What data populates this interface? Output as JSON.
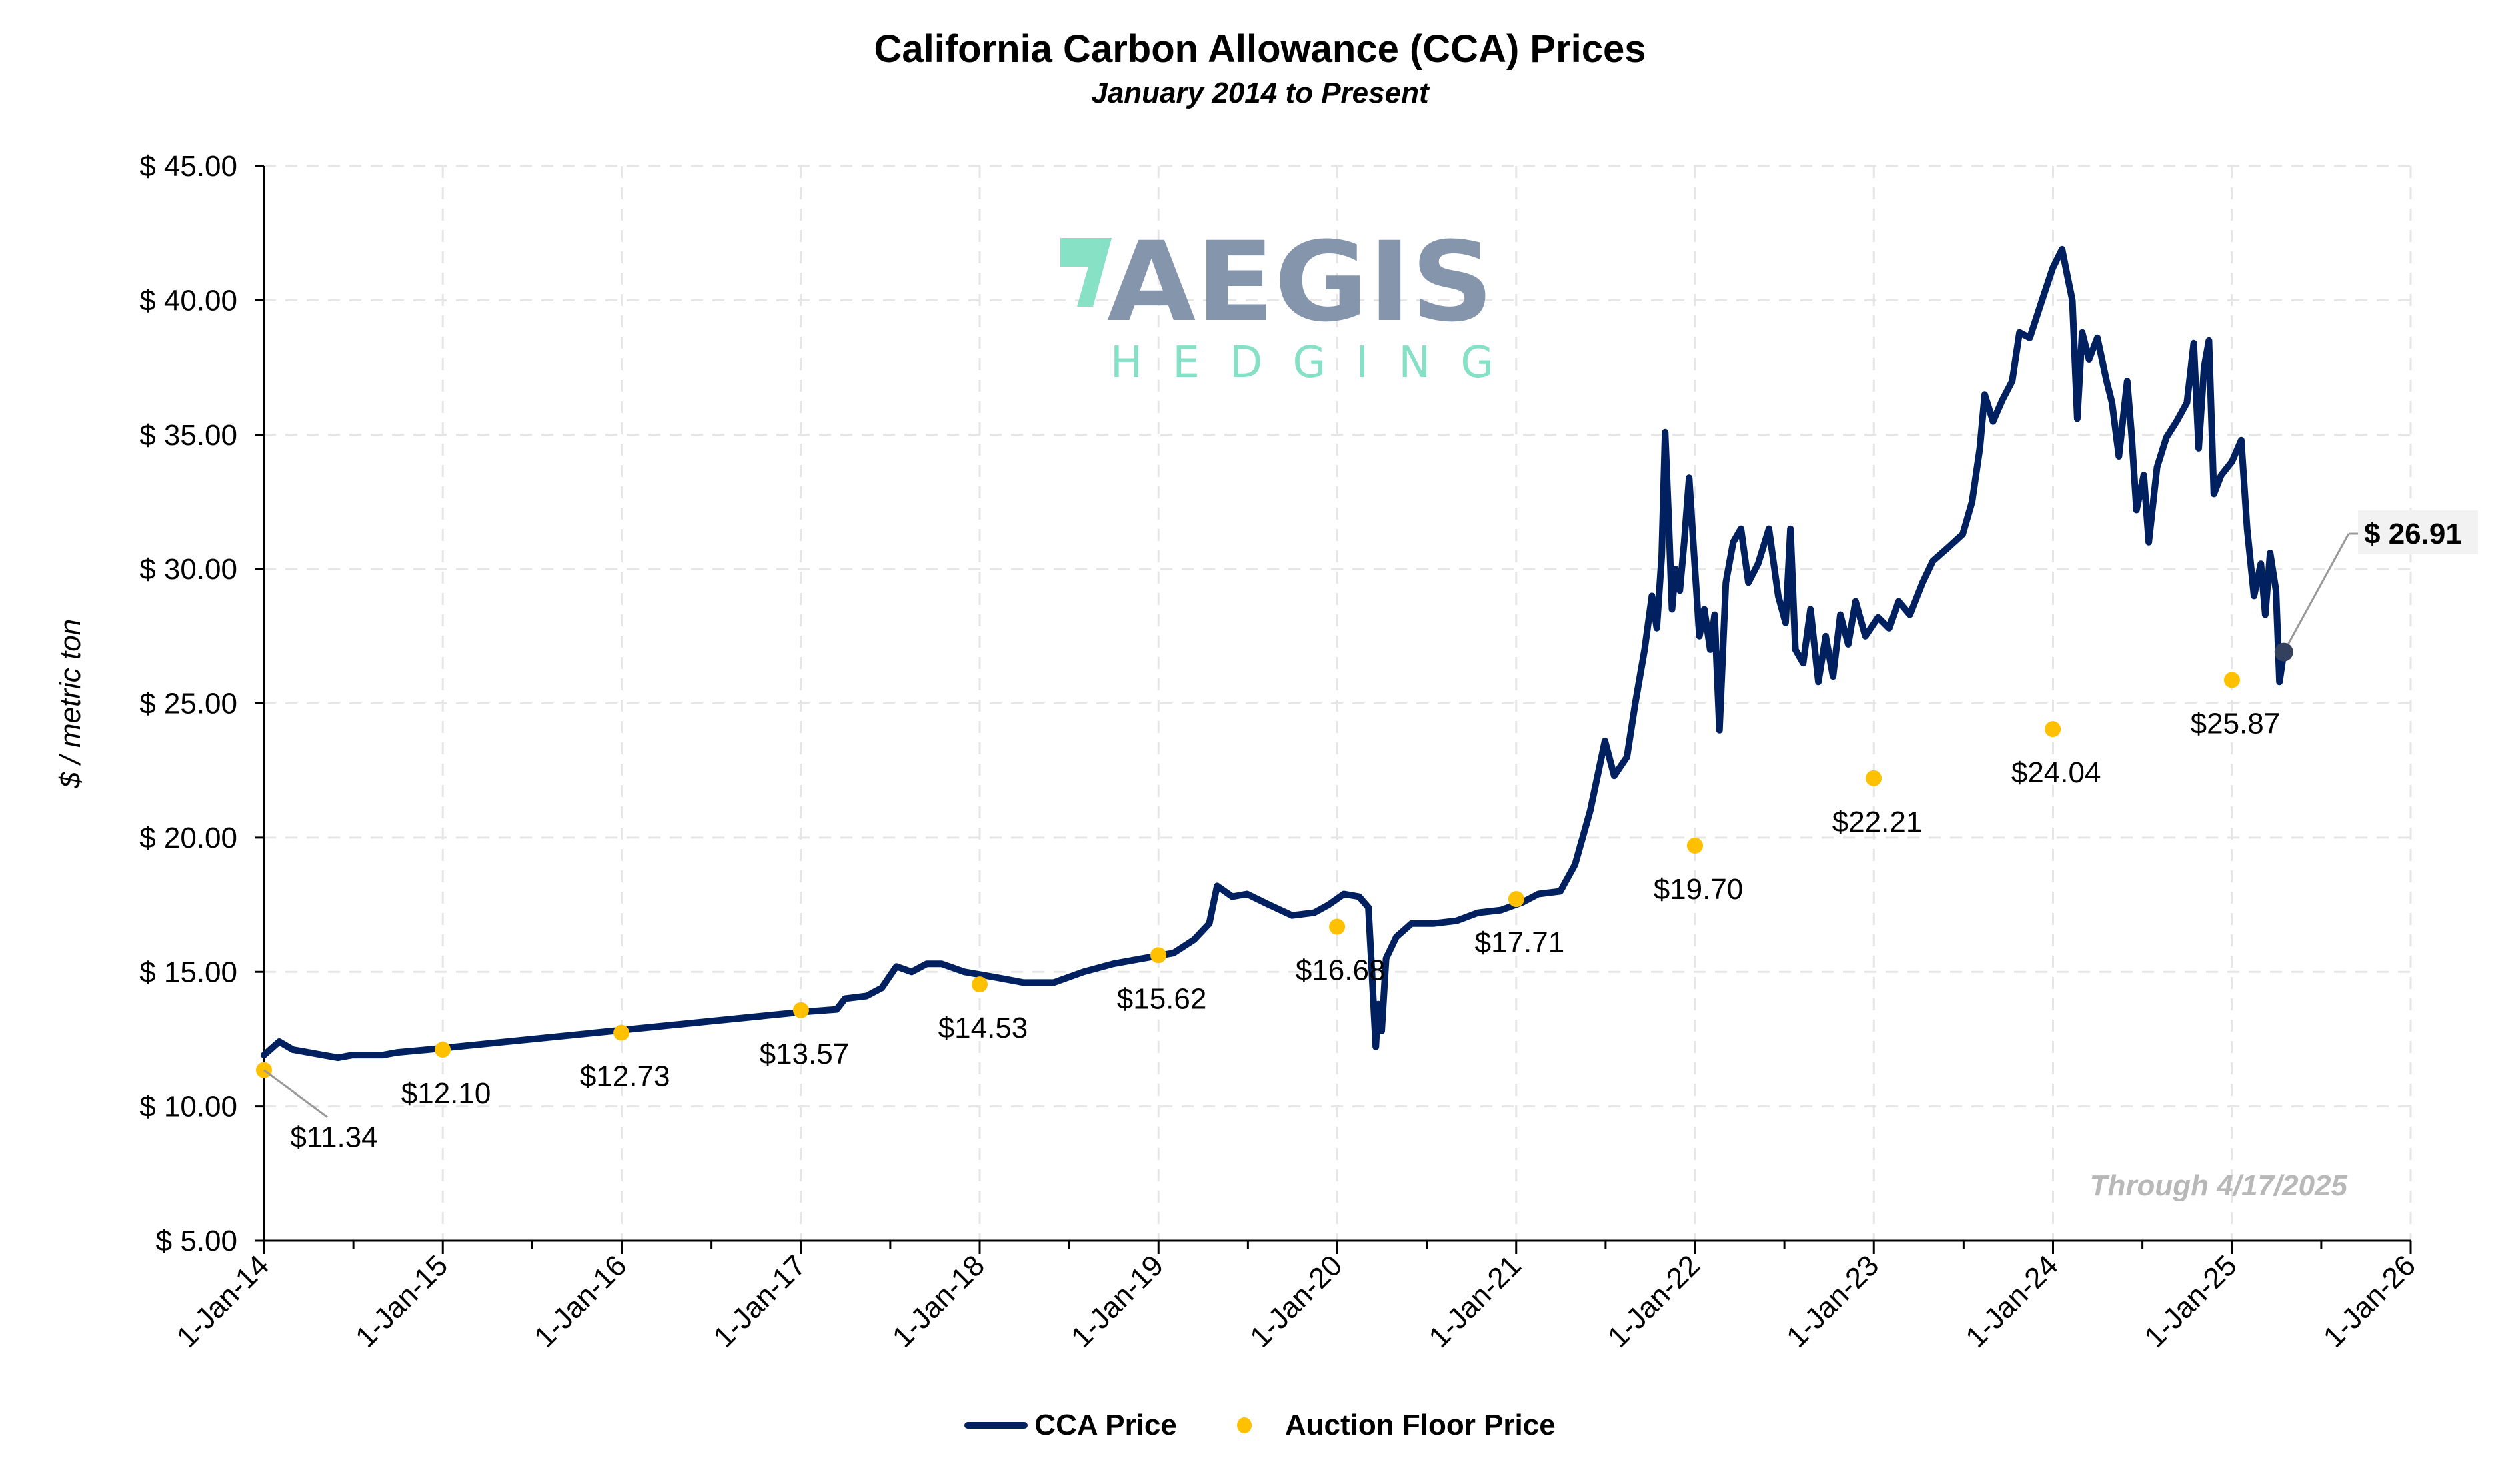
{
  "chart_data": {
    "type": "line",
    "title": "California Carbon Allowance (CCA) Prices",
    "subtitle": "January 2014 to Present",
    "ylabel": "$ / metric ton",
    "xlabel": "",
    "ylim": [
      5,
      45
    ],
    "xlim": [
      "2014-01-01",
      "2026-01-01"
    ],
    "y_ticks": [
      "$ 5.00",
      "$ 10.00",
      "$ 15.00",
      "$ 20.00",
      "$ 25.00",
      "$ 30.00",
      "$ 35.00",
      "$ 40.00",
      "$ 45.00"
    ],
    "y_tick_values": [
      5,
      10,
      15,
      20,
      25,
      30,
      35,
      40,
      45
    ],
    "x_ticks": [
      "1-Jan-14",
      "1-Jan-15",
      "1-Jan-16",
      "1-Jan-17",
      "1-Jan-18",
      "1-Jan-19",
      "1-Jan-20",
      "1-Jan-21",
      "1-Jan-22",
      "1-Jan-23",
      "1-Jan-24",
      "1-Jan-25",
      "1-Jan-26"
    ],
    "grid": true,
    "legend_position": "bottom",
    "annotation": "Through 4/17/2025",
    "last_price_label": "$ 26.91",
    "series": [
      {
        "name": "CCA Price",
        "type": "line",
        "color": "#002060",
        "points": [
          [
            "2014-01-01",
            11.9
          ],
          [
            "2014-02-01",
            12.4
          ],
          [
            "2014-03-01",
            12.1
          ],
          [
            "2014-04-01",
            12.0
          ],
          [
            "2014-05-01",
            11.9
          ],
          [
            "2014-06-01",
            11.8
          ],
          [
            "2014-07-01",
            11.9
          ],
          [
            "2014-08-01",
            11.9
          ],
          [
            "2014-09-01",
            11.9
          ],
          [
            "2014-10-01",
            12.0
          ],
          [
            "2014-12-01",
            12.1
          ],
          [
            "2017-01-01",
            13.5
          ],
          [
            "2017-03-15",
            13.6
          ],
          [
            "2017-04-01",
            14.0
          ],
          [
            "2017-05-15",
            14.1
          ],
          [
            "2017-06-15",
            14.4
          ],
          [
            "2017-07-15",
            15.2
          ],
          [
            "2017-08-15",
            15.0
          ],
          [
            "2017-09-15",
            15.3
          ],
          [
            "2017-10-15",
            15.3
          ],
          [
            "2017-12-01",
            15.0
          ],
          [
            "2018-02-01",
            14.8
          ],
          [
            "2018-04-01",
            14.6
          ],
          [
            "2018-06-01",
            14.6
          ],
          [
            "2018-08-01",
            15.0
          ],
          [
            "2018-10-01",
            15.3
          ],
          [
            "2018-12-01",
            15.5
          ],
          [
            "2019-02-01",
            15.7
          ],
          [
            "2019-03-15",
            16.2
          ],
          [
            "2019-04-15",
            16.8
          ],
          [
            "2019-05-01",
            18.2
          ],
          [
            "2019-06-01",
            17.8
          ],
          [
            "2019-07-01",
            17.9
          ],
          [
            "2019-08-15",
            17.5
          ],
          [
            "2019-10-01",
            17.1
          ],
          [
            "2019-11-15",
            17.2
          ],
          [
            "2019-12-15",
            17.5
          ],
          [
            "2020-01-15",
            17.9
          ],
          [
            "2020-02-15",
            17.8
          ],
          [
            "2020-03-05",
            17.4
          ],
          [
            "2020-03-12",
            15.0
          ],
          [
            "2020-03-20",
            12.2
          ],
          [
            "2020-03-25",
            13.8
          ],
          [
            "2020-04-01",
            12.8
          ],
          [
            "2020-04-10",
            15.5
          ],
          [
            "2020-05-01",
            16.3
          ],
          [
            "2020-06-01",
            16.8
          ],
          [
            "2020-07-15",
            16.8
          ],
          [
            "2020-09-01",
            16.9
          ],
          [
            "2020-10-15",
            17.2
          ],
          [
            "2020-12-01",
            17.3
          ],
          [
            "2021-01-15",
            17.6
          ],
          [
            "2021-02-15",
            17.9
          ],
          [
            "2021-04-01",
            18.0
          ],
          [
            "2021-05-01",
            19.0
          ],
          [
            "2021-06-01",
            21.0
          ],
          [
            "2021-07-01",
            23.6
          ],
          [
            "2021-07-20",
            22.3
          ],
          [
            "2021-08-15",
            23.0
          ],
          [
            "2021-09-01",
            25.0
          ],
          [
            "2021-09-20",
            27.0
          ],
          [
            "2021-10-05",
            29.0
          ],
          [
            "2021-10-15",
            27.8
          ],
          [
            "2021-10-25",
            30.5
          ],
          [
            "2021-11-01",
            35.1
          ],
          [
            "2021-11-08",
            32.0
          ],
          [
            "2021-11-15",
            28.5
          ],
          [
            "2021-11-22",
            30.0
          ],
          [
            "2021-12-01",
            29.2
          ],
          [
            "2021-12-10",
            31.0
          ],
          [
            "2021-12-20",
            33.4
          ],
          [
            "2022-01-01",
            30.0
          ],
          [
            "2022-01-10",
            27.5
          ],
          [
            "2022-01-20",
            28.5
          ],
          [
            "2022-02-01",
            27.0
          ],
          [
            "2022-02-10",
            28.3
          ],
          [
            "2022-02-20",
            24.0
          ],
          [
            "2022-03-05",
            29.5
          ],
          [
            "2022-03-20",
            31.0
          ],
          [
            "2022-04-05",
            31.5
          ],
          [
            "2022-04-20",
            29.5
          ],
          [
            "2022-05-10",
            30.2
          ],
          [
            "2022-06-01",
            31.5
          ],
          [
            "2022-06-20",
            29.0
          ],
          [
            "2022-07-05",
            28.0
          ],
          [
            "2022-07-15",
            31.5
          ],
          [
            "2022-07-25",
            27.0
          ],
          [
            "2022-08-10",
            26.5
          ],
          [
            "2022-08-25",
            28.5
          ],
          [
            "2022-09-10",
            25.8
          ],
          [
            "2022-09-25",
            27.5
          ],
          [
            "2022-10-10",
            26.0
          ],
          [
            "2022-10-25",
            28.3
          ],
          [
            "2022-11-10",
            27.2
          ],
          [
            "2022-11-25",
            28.8
          ],
          [
            "2022-12-15",
            27.5
          ],
          [
            "2023-01-10",
            28.2
          ],
          [
            "2023-02-01",
            27.8
          ],
          [
            "2023-02-20",
            28.8
          ],
          [
            "2023-03-15",
            28.3
          ],
          [
            "2023-04-10",
            29.5
          ],
          [
            "2023-05-01",
            30.3
          ],
          [
            "2023-06-01",
            30.8
          ],
          [
            "2023-07-01",
            31.3
          ],
          [
            "2023-07-20",
            32.5
          ],
          [
            "2023-08-05",
            34.5
          ],
          [
            "2023-08-15",
            36.5
          ],
          [
            "2023-09-01",
            35.5
          ],
          [
            "2023-09-20",
            36.3
          ],
          [
            "2023-10-10",
            37.0
          ],
          [
            "2023-10-25",
            38.8
          ],
          [
            "2023-11-15",
            38.6
          ],
          [
            "2023-12-10",
            40.0
          ],
          [
            "2024-01-01",
            41.2
          ],
          [
            "2024-01-20",
            41.9
          ],
          [
            "2024-02-01",
            40.8
          ],
          [
            "2024-02-10",
            40.0
          ],
          [
            "2024-02-20",
            35.6
          ],
          [
            "2024-03-01",
            38.8
          ],
          [
            "2024-03-15",
            37.8
          ],
          [
            "2024-04-01",
            38.6
          ],
          [
            "2024-04-20",
            37.0
          ],
          [
            "2024-05-01",
            36.2
          ],
          [
            "2024-05-15",
            34.2
          ],
          [
            "2024-06-01",
            37.0
          ],
          [
            "2024-06-10",
            35.0
          ],
          [
            "2024-06-20",
            32.2
          ],
          [
            "2024-07-05",
            33.5
          ],
          [
            "2024-07-15",
            31.0
          ],
          [
            "2024-08-01",
            33.8
          ],
          [
            "2024-08-20",
            34.9
          ],
          [
            "2024-09-10",
            35.5
          ],
          [
            "2024-10-01",
            36.2
          ],
          [
            "2024-10-15",
            38.4
          ],
          [
            "2024-10-25",
            34.5
          ],
          [
            "2024-11-05",
            37.5
          ],
          [
            "2024-11-15",
            38.5
          ],
          [
            "2024-11-25",
            32.8
          ],
          [
            "2024-12-10",
            33.5
          ],
          [
            "2025-01-01",
            34.0
          ],
          [
            "2025-01-20",
            34.8
          ],
          [
            "2025-02-01",
            31.5
          ],
          [
            "2025-02-15",
            29.0
          ],
          [
            "2025-03-01",
            30.2
          ],
          [
            "2025-03-10",
            28.3
          ],
          [
            "2025-03-20",
            30.6
          ],
          [
            "2025-04-01",
            29.2
          ],
          [
            "2025-04-08",
            25.8
          ],
          [
            "2025-04-17",
            26.91
          ]
        ]
      },
      {
        "name": "Auction Floor Price",
        "type": "scatter",
        "color": "#FFC000",
        "points": [
          [
            "2014-01-01",
            11.34,
            "$11.34"
          ],
          [
            "2015-01-01",
            12.1,
            "$12.10"
          ],
          [
            "2016-01-01",
            12.73,
            "$12.73"
          ],
          [
            "2017-01-01",
            13.57,
            "$13.57"
          ],
          [
            "2018-01-01",
            14.53,
            "$14.53"
          ],
          [
            "2019-01-01",
            15.62,
            "$15.62"
          ],
          [
            "2020-01-01",
            16.68,
            "$16.68"
          ],
          [
            "2021-01-01",
            17.71,
            "$17.71"
          ],
          [
            "2022-01-01",
            19.7,
            "$19.70"
          ],
          [
            "2023-01-01",
            22.21,
            "$22.21"
          ],
          [
            "2024-01-01",
            24.04,
            "$24.04"
          ],
          [
            "2025-01-01",
            25.87,
            "$25.87"
          ]
        ]
      }
    ]
  },
  "logo": {
    "text_top": "AEGIS",
    "text_bottom": "HEDGING",
    "colors": {
      "primary": "#7F90A8",
      "accent": "#7FDFC2"
    }
  }
}
